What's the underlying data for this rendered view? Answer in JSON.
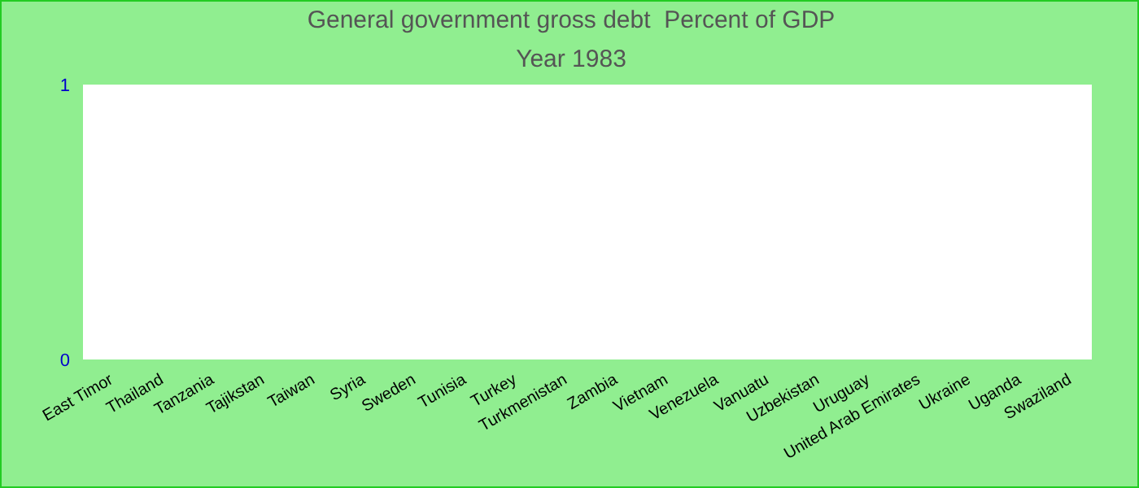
{
  "chart_data": {
    "type": "bar",
    "title": "General government gross debt  Percent of GDP",
    "subtitle": "Year 1983",
    "categories": [
      "East Timor",
      "Thailand",
      "Tanzania",
      "Tajikstan",
      "Taiwan",
      "Syria",
      "Sweden",
      "Tunisia",
      "Turkey",
      "Turkmenistan",
      "Zambia",
      "Vietnam",
      "Venezuela",
      "Vanuatu",
      "Uzbekistan",
      "Uruguay",
      "United Arab Emirates",
      "Ukraine",
      "Uganda",
      "Swaziland"
    ],
    "values": [
      null,
      null,
      null,
      null,
      null,
      null,
      null,
      null,
      null,
      null,
      null,
      null,
      null,
      null,
      null,
      null,
      null,
      null,
      null,
      null
    ],
    "ylim": [
      0,
      1
    ],
    "yticks": [
      0,
      1
    ],
    "grid": false,
    "legend": false
  }
}
